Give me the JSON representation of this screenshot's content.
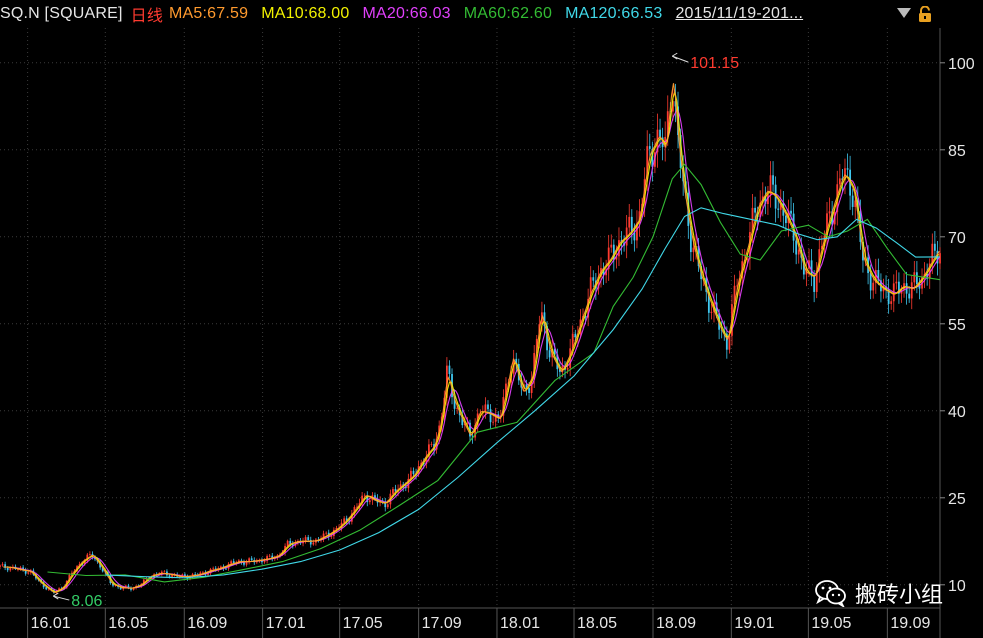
{
  "header": {
    "symbol": "SQ.N [SQUARE]",
    "period": "日线",
    "ma5": "MA5:67.59",
    "ma10": "MA10:68.00",
    "ma20": "MA20:66.03",
    "ma60": "MA60:62.60",
    "ma120": "MA120:66.53",
    "range": "2015/11/19-201..."
  },
  "watermark": "搬砖小组",
  "colors": {
    "background": "#000000",
    "grid": "#3a3a3a",
    "up": "#ff3b30",
    "down": "#3fc8f0",
    "ma5": "#ff9a2e",
    "ma10": "#f2f200",
    "ma20": "#e040fb",
    "ma60": "#33bb33",
    "ma120": "#40d8e8",
    "max_label": "#ff3b30",
    "min_label": "#33cc66"
  },
  "chart_data": {
    "type": "line",
    "title": "SQ.N [SQUARE] 日线",
    "x_ticks": [
      "16.01",
      "16.05",
      "16.09",
      "17.01",
      "17.05",
      "17.09",
      "18.01",
      "18.05",
      "18.09",
      "19.01",
      "19.05",
      "19.09"
    ],
    "y_ticks": [
      10,
      25,
      40,
      55,
      70,
      85,
      100
    ],
    "ylim": [
      6,
      106
    ],
    "x_range": [
      "2015-11-19",
      "2019-11-22"
    ],
    "grid": true,
    "annotations": [
      {
        "label": "101.15",
        "date": "2018-10-01",
        "value": 101.15,
        "kind": "max"
      },
      {
        "label": "8.06",
        "date": "2016-02-10",
        "value": 8.06,
        "kind": "min"
      }
    ],
    "series": [
      {
        "name": "日线",
        "role": "price",
        "points": [
          [
            "2015-11-19",
            13.1
          ],
          [
            "2015-12-05",
            13.0
          ],
          [
            "2015-12-20",
            12.6
          ],
          [
            "2016-01-05",
            12.3
          ],
          [
            "2016-01-20",
            10.4
          ],
          [
            "2016-02-10",
            8.6
          ],
          [
            "2016-02-25",
            9.6
          ],
          [
            "2016-03-10",
            12.0
          ],
          [
            "2016-03-25",
            14.0
          ],
          [
            "2016-04-10",
            15.2
          ],
          [
            "2016-04-25",
            13.0
          ],
          [
            "2016-05-10",
            10.2
          ],
          [
            "2016-05-25",
            9.5
          ],
          [
            "2016-06-10",
            9.4
          ],
          [
            "2016-06-25",
            10.0
          ],
          [
            "2016-07-10",
            11.5
          ],
          [
            "2016-07-25",
            12.0
          ],
          [
            "2016-08-10",
            11.8
          ],
          [
            "2016-08-25",
            11.4
          ],
          [
            "2016-09-10",
            11.5
          ],
          [
            "2016-09-25",
            11.8
          ],
          [
            "2016-10-10",
            12.4
          ],
          [
            "2016-10-25",
            12.8
          ],
          [
            "2016-11-10",
            13.5
          ],
          [
            "2016-11-25",
            14.0
          ],
          [
            "2016-12-10",
            14.0
          ],
          [
            "2016-12-25",
            14.2
          ],
          [
            "2017-01-10",
            14.5
          ],
          [
            "2017-01-25",
            15.0
          ],
          [
            "2017-02-10",
            17.0
          ],
          [
            "2017-02-25",
            17.5
          ],
          [
            "2017-03-10",
            17.5
          ],
          [
            "2017-03-25",
            17.6
          ],
          [
            "2017-04-10",
            18.5
          ],
          [
            "2017-04-25",
            19.5
          ],
          [
            "2017-05-10",
            21.0
          ],
          [
            "2017-05-25",
            23.0
          ],
          [
            "2017-06-10",
            25.5
          ],
          [
            "2017-06-25",
            24.5
          ],
          [
            "2017-07-10",
            24.0
          ],
          [
            "2017-07-25",
            26.0
          ],
          [
            "2017-08-10",
            27.5
          ],
          [
            "2017-08-25",
            29.0
          ],
          [
            "2017-09-10",
            32.0
          ],
          [
            "2017-09-25",
            34.0
          ],
          [
            "2017-10-05",
            38.0
          ],
          [
            "2017-10-15",
            46.5
          ],
          [
            "2017-10-25",
            42.0
          ],
          [
            "2017-11-05",
            39.0
          ],
          [
            "2017-11-20",
            35.5
          ],
          [
            "2017-12-05",
            40.0
          ],
          [
            "2017-12-20",
            39.5
          ],
          [
            "2018-01-05",
            38.5
          ],
          [
            "2018-01-15",
            43.5
          ],
          [
            "2018-01-25",
            49.5
          ],
          [
            "2018-02-10",
            43.0
          ],
          [
            "2018-02-25",
            46.0
          ],
          [
            "2018-03-10",
            57.0
          ],
          [
            "2018-03-25",
            50.0
          ],
          [
            "2018-04-10",
            46.5
          ],
          [
            "2018-04-25",
            50.0
          ],
          [
            "2018-05-10",
            55.0
          ],
          [
            "2018-05-25",
            60.0
          ],
          [
            "2018-06-10",
            64.0
          ],
          [
            "2018-06-25",
            66.0
          ],
          [
            "2018-07-10",
            69.0
          ],
          [
            "2018-07-25",
            70.5
          ],
          [
            "2018-08-10",
            73.0
          ],
          [
            "2018-08-25",
            84.0
          ],
          [
            "2018-09-10",
            87.5
          ],
          [
            "2018-09-20",
            85.0
          ],
          [
            "2018-10-01",
            98.0
          ],
          [
            "2018-10-10",
            86.0
          ],
          [
            "2018-10-20",
            77.0
          ],
          [
            "2018-11-01",
            69.0
          ],
          [
            "2018-11-15",
            63.0
          ],
          [
            "2018-12-01",
            58.0
          ],
          [
            "2018-12-15",
            54.0
          ],
          [
            "2018-12-25",
            52.0
          ],
          [
            "2019-01-10",
            62.0
          ],
          [
            "2019-01-25",
            68.0
          ],
          [
            "2019-02-10",
            75.0
          ],
          [
            "2019-02-25",
            78.0
          ],
          [
            "2019-03-10",
            77.0
          ],
          [
            "2019-03-25",
            74.0
          ],
          [
            "2019-04-10",
            70.0
          ],
          [
            "2019-04-25",
            64.0
          ],
          [
            "2019-05-10",
            63.0
          ],
          [
            "2019-05-25",
            70.0
          ],
          [
            "2019-06-10",
            76.0
          ],
          [
            "2019-06-25",
            81.0
          ],
          [
            "2019-07-10",
            78.0
          ],
          [
            "2019-07-25",
            66.0
          ],
          [
            "2019-08-10",
            62.5
          ],
          [
            "2019-08-25",
            61.0
          ],
          [
            "2019-09-10",
            60.0
          ],
          [
            "2019-09-25",
            61.5
          ],
          [
            "2019-10-10",
            61.0
          ],
          [
            "2019-10-25",
            63.0
          ],
          [
            "2019-11-10",
            66.0
          ],
          [
            "2019-11-22",
            68.0
          ]
        ]
      },
      {
        "name": "MA60",
        "points": [
          [
            "2016-02-01",
            12.2
          ],
          [
            "2016-04-01",
            11.6
          ],
          [
            "2016-06-01",
            11.7
          ],
          [
            "2016-08-01",
            10.5
          ],
          [
            "2016-10-01",
            11.3
          ],
          [
            "2016-12-01",
            12.6
          ],
          [
            "2017-02-01",
            14.0
          ],
          [
            "2017-04-01",
            16.2
          ],
          [
            "2017-06-01",
            19.4
          ],
          [
            "2017-08-01",
            23.6
          ],
          [
            "2017-10-01",
            28.0
          ],
          [
            "2017-12-01",
            36.3
          ],
          [
            "2018-02-01",
            38.0
          ],
          [
            "2018-04-01",
            45.2
          ],
          [
            "2018-06-01",
            50.0
          ],
          [
            "2018-07-01",
            58.0
          ],
          [
            "2018-08-01",
            63.0
          ],
          [
            "2018-09-01",
            70.0
          ],
          [
            "2018-10-01",
            80.0
          ],
          [
            "2018-10-20",
            82.5
          ],
          [
            "2018-11-15",
            79.0
          ],
          [
            "2018-12-15",
            72.5
          ],
          [
            "2019-01-15",
            67.0
          ],
          [
            "2019-02-15",
            66.0
          ],
          [
            "2019-03-20",
            71.0
          ],
          [
            "2019-05-01",
            72.0
          ],
          [
            "2019-06-01",
            70.0
          ],
          [
            "2019-07-01",
            71.0
          ],
          [
            "2019-08-01",
            73.0
          ],
          [
            "2019-09-01",
            68.0
          ],
          [
            "2019-10-01",
            63.5
          ],
          [
            "2019-11-22",
            62.6
          ]
        ]
      },
      {
        "name": "MA120",
        "points": [
          [
            "2016-05-01",
            11.7
          ],
          [
            "2016-07-01",
            11.4
          ],
          [
            "2016-09-01",
            11.2
          ],
          [
            "2016-11-01",
            11.7
          ],
          [
            "2017-01-01",
            12.7
          ],
          [
            "2017-03-01",
            14.0
          ],
          [
            "2017-05-01",
            16.0
          ],
          [
            "2017-07-01",
            19.0
          ],
          [
            "2017-09-01",
            23.0
          ],
          [
            "2017-11-01",
            28.5
          ],
          [
            "2018-01-01",
            34.5
          ],
          [
            "2018-03-01",
            40.0
          ],
          [
            "2018-05-01",
            46.0
          ],
          [
            "2018-07-01",
            54.0
          ],
          [
            "2018-08-15",
            61.0
          ],
          [
            "2018-09-20",
            68.0
          ],
          [
            "2018-10-20",
            73.5
          ],
          [
            "2018-11-15",
            75.0
          ],
          [
            "2018-12-20",
            74.0
          ],
          [
            "2019-02-01",
            73.0
          ],
          [
            "2019-03-15",
            72.0
          ],
          [
            "2019-04-15",
            70.5
          ],
          [
            "2019-05-15",
            69.5
          ],
          [
            "2019-06-15",
            70.0
          ],
          [
            "2019-07-15",
            73.0
          ],
          [
            "2019-08-15",
            71.5
          ],
          [
            "2019-09-15",
            69.0
          ],
          [
            "2019-10-15",
            66.5
          ],
          [
            "2019-11-22",
            66.53
          ]
        ]
      }
    ]
  }
}
